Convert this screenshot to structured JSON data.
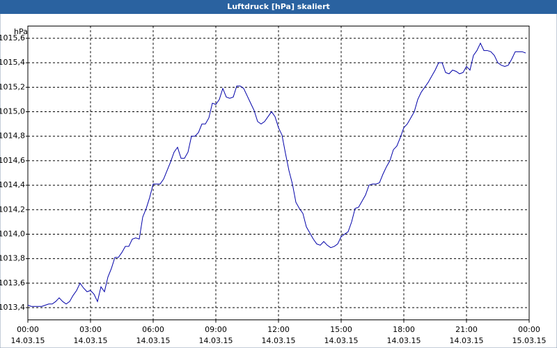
{
  "chart_data": {
    "type": "line",
    "title": "Luftdruck [hPa] skaliert",
    "y_unit": "hPa",
    "x": [
      0,
      10,
      20,
      30,
      40,
      50,
      60,
      70,
      80,
      90,
      100,
      110,
      120,
      130,
      140,
      150,
      160,
      170,
      180,
      190,
      200,
      210,
      220,
      230,
      240,
      250,
      260,
      270,
      280,
      290,
      300,
      310,
      320,
      330,
      340,
      350,
      360,
      370,
      380,
      390,
      400,
      410,
      420,
      430,
      440,
      450,
      460,
      470,
      480,
      490,
      500,
      510,
      520,
      530,
      540,
      550,
      560,
      570,
      580,
      590,
      600,
      610,
      620,
      630,
      640,
      650,
      660,
      670,
      680,
      690,
      700,
      710,
      720,
      730,
      740,
      750,
      760,
      770,
      780,
      790,
      800,
      810,
      820,
      830,
      840,
      850,
      860,
      870,
      880,
      890,
      900,
      910,
      920,
      930,
      940,
      950,
      960,
      970,
      980,
      990,
      1000,
      1010,
      1020,
      1030,
      1040,
      1050,
      1060,
      1070,
      1080,
      1090,
      1100,
      1110,
      1120,
      1130,
      1140,
      1150,
      1160,
      1170,
      1180,
      1190,
      1200,
      1210,
      1220,
      1230,
      1240,
      1250,
      1260,
      1270,
      1280,
      1290,
      1300,
      1310,
      1320,
      1330,
      1340,
      1350,
      1360,
      1370,
      1380,
      1390,
      1400,
      1410,
      1420,
      1430
    ],
    "series": [
      {
        "name": "Luftdruck",
        "color": "#0000a8",
        "values": [
          1013.42,
          1013.41,
          1013.41,
          1013.41,
          1013.41,
          1013.42,
          1013.43,
          1013.43,
          1013.45,
          1013.48,
          1013.45,
          1013.43,
          1013.45,
          1013.5,
          1013.54,
          1013.6,
          1013.56,
          1013.53,
          1013.54,
          1013.51,
          1013.45,
          1013.57,
          1013.53,
          1013.65,
          1013.72,
          1013.81,
          1013.81,
          1013.85,
          1013.9,
          1013.9,
          1013.96,
          1013.97,
          1013.96,
          1014.14,
          1014.21,
          1014.3,
          1014.41,
          1014.41,
          1014.41,
          1014.45,
          1014.52,
          1014.59,
          1014.67,
          1014.71,
          1014.62,
          1014.62,
          1014.67,
          1014.8,
          1014.8,
          1014.83,
          1014.9,
          1014.9,
          1014.95,
          1015.07,
          1015.06,
          1015.1,
          1015.19,
          1015.12,
          1015.11,
          1015.12,
          1015.21,
          1015.21,
          1015.19,
          1015.13,
          1015.07,
          1015.01,
          1014.92,
          1014.9,
          1014.92,
          1014.96,
          1015.0,
          1014.96,
          1014.87,
          1014.81,
          1014.66,
          1014.52,
          1014.41,
          1014.26,
          1014.21,
          1014.17,
          1014.06,
          1014.01,
          1013.96,
          1013.92,
          1013.91,
          1013.94,
          1013.91,
          1013.89,
          1013.9,
          1013.92,
          1013.98,
          1014.0,
          1014.02,
          1014.1,
          1014.21,
          1014.22,
          1014.27,
          1014.32,
          1014.4,
          1014.41,
          1014.41,
          1014.42,
          1014.49,
          1014.55,
          1014.6,
          1014.69,
          1014.72,
          1014.79,
          1014.87,
          1014.9,
          1014.95,
          1015.0,
          1015.1,
          1015.16,
          1015.2,
          1015.24,
          1015.29,
          1015.34,
          1015.4,
          1015.4,
          1015.32,
          1015.31,
          1015.34,
          1015.33,
          1015.31,
          1015.32,
          1015.37,
          1015.34,
          1015.46,
          1015.5,
          1015.56,
          1015.5,
          1015.5,
          1015.49,
          1015.46,
          1015.4,
          1015.38,
          1015.37,
          1015.38,
          1015.43,
          1015.49,
          1015.49,
          1015.49,
          1015.48
        ]
      }
    ],
    "xlim": [
      0,
      1440
    ],
    "xticks": [
      {
        "value": 0,
        "label": "00:00"
      },
      {
        "value": 180,
        "label": "03:00"
      },
      {
        "value": 360,
        "label": "06:00"
      },
      {
        "value": 540,
        "label": "09:00"
      },
      {
        "value": 720,
        "label": "12:00"
      },
      {
        "value": 900,
        "label": "15:00"
      },
      {
        "value": 1080,
        "label": "18:00"
      },
      {
        "value": 1260,
        "label": "21:00"
      },
      {
        "value": 1440,
        "label": "00:00"
      }
    ],
    "xtick_dates": [
      "14.03.15",
      "14.03.15",
      "14.03.15",
      "14.03.15",
      "14.03.15",
      "14.03.15",
      "14.03.15",
      "14.03.15",
      "15.03.15"
    ],
    "ylim": [
      1013.3,
      1015.7
    ],
    "yticks": [
      {
        "value": 1013.4,
        "label": "1013,4"
      },
      {
        "value": 1013.6,
        "label": "1013,6"
      },
      {
        "value": 1013.8,
        "label": "1013,8"
      },
      {
        "value": 1014.0,
        "label": "1014,0"
      },
      {
        "value": 1014.2,
        "label": "1014,2"
      },
      {
        "value": 1014.4,
        "label": "1014,4"
      },
      {
        "value": 1014.6,
        "label": "1014,6"
      },
      {
        "value": 1014.8,
        "label": "1014,8"
      },
      {
        "value": 1015.0,
        "label": "1015,0"
      },
      {
        "value": 1015.2,
        "label": "1015,2"
      },
      {
        "value": 1015.4,
        "label": "1015,4"
      },
      {
        "value": 1015.6,
        "label": "1015,6"
      }
    ],
    "grid": true
  }
}
